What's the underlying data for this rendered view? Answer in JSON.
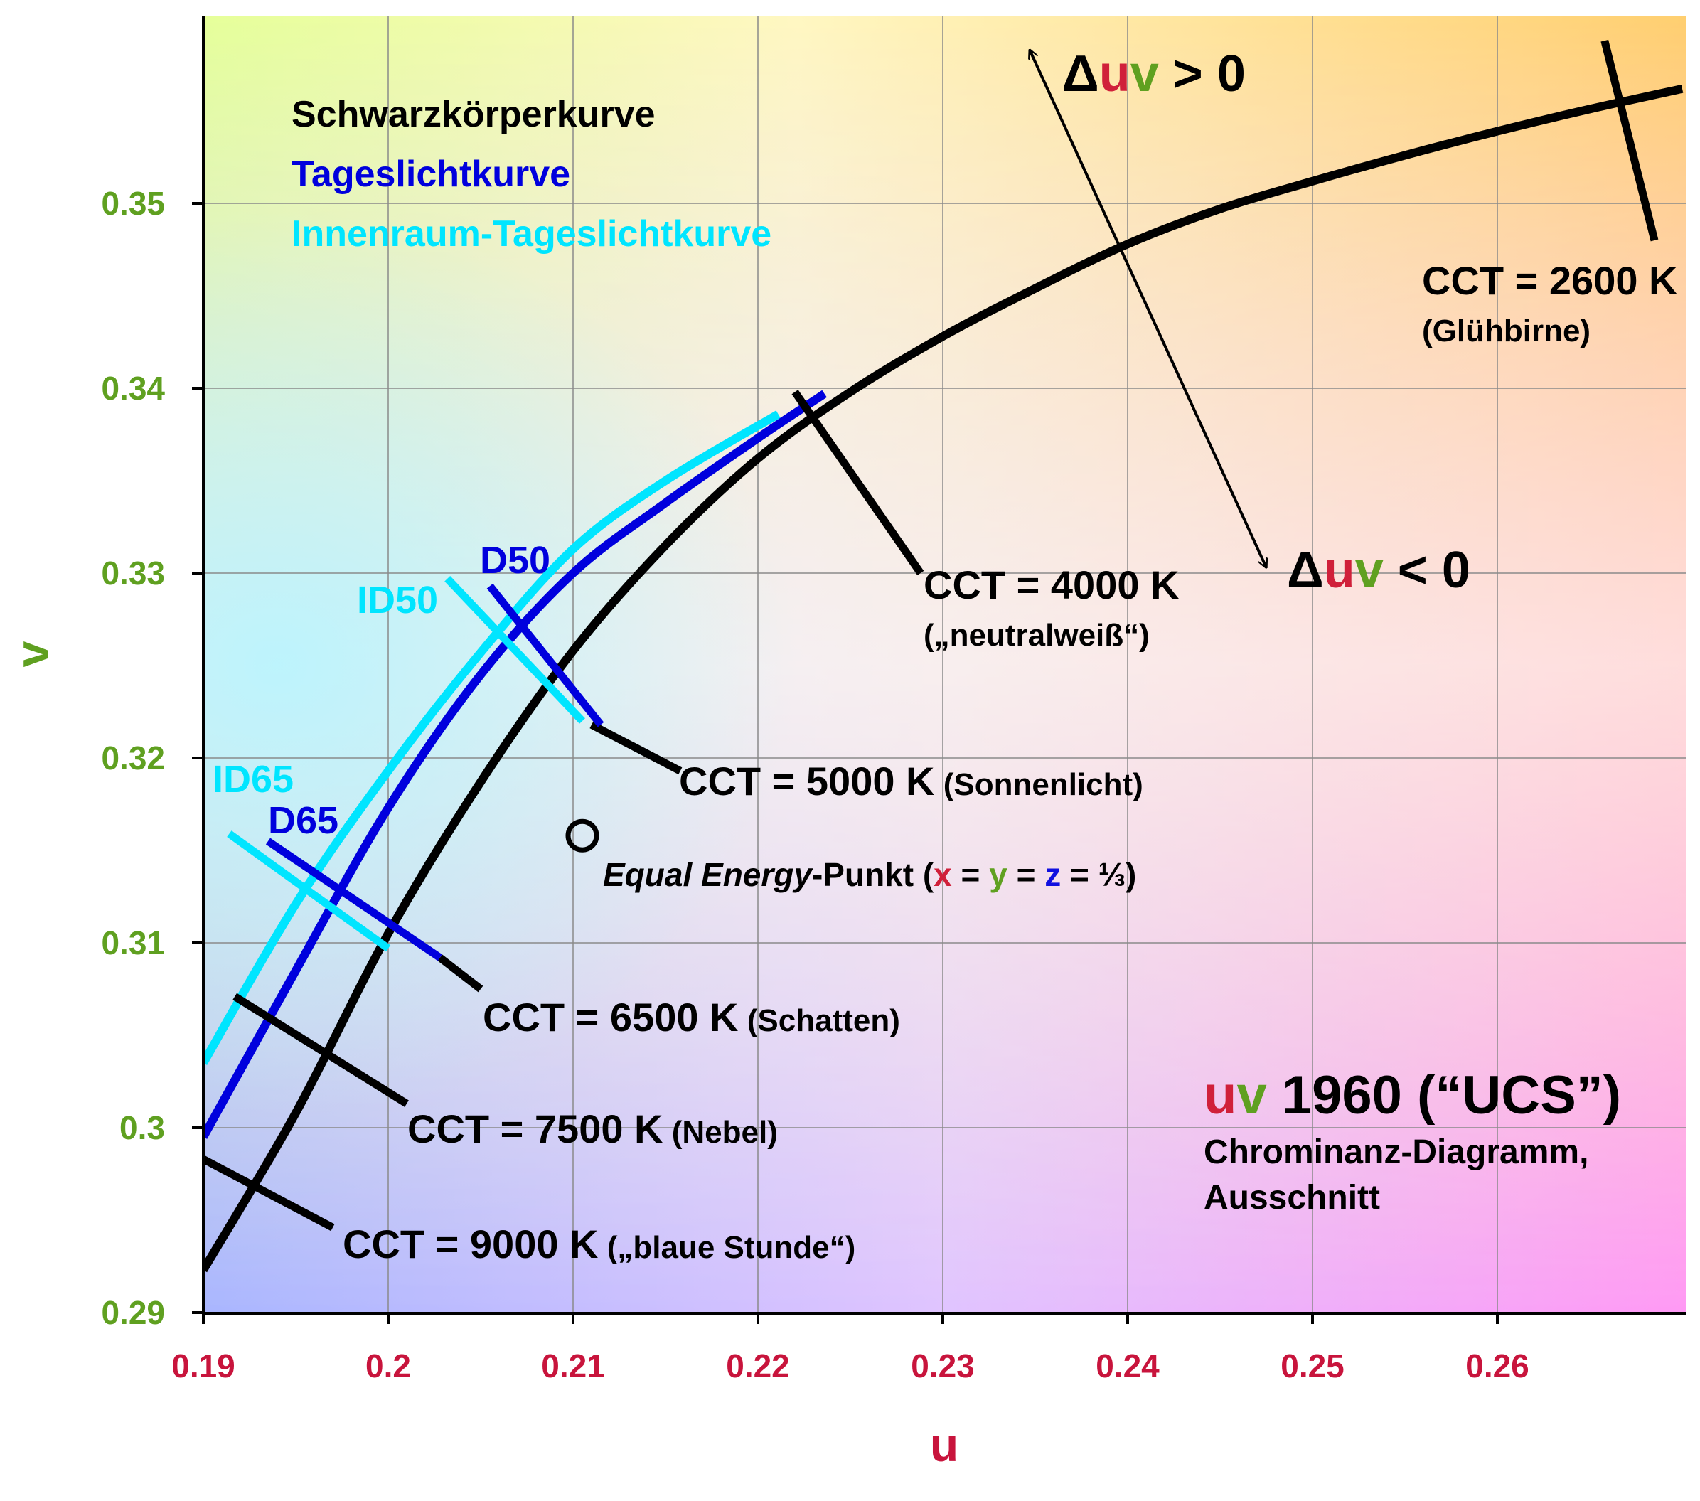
{
  "chart_data": {
    "type": "line",
    "xlabel": "u",
    "ylabel": "v",
    "xlim": [
      0.19,
      0.27
    ],
    "ylim": [
      0.29,
      0.3603
    ],
    "xticks": [
      {
        "value": 0.19,
        "label": "0.19"
      },
      {
        "value": 0.2,
        "label": "0.2"
      },
      {
        "value": 0.21,
        "label": "0.21"
      },
      {
        "value": 0.22,
        "label": "0.22"
      },
      {
        "value": 0.23,
        "label": "0.23"
      },
      {
        "value": 0.24,
        "label": "0.24"
      },
      {
        "value": 0.25,
        "label": "0.25"
      },
      {
        "value": 0.26,
        "label": "0.26"
      }
    ],
    "yticks": [
      {
        "value": 0.29,
        "label": "0.29"
      },
      {
        "value": 0.3,
        "label": "0.3"
      },
      {
        "value": 0.31,
        "label": "0.31"
      },
      {
        "value": 0.32,
        "label": "0.32"
      },
      {
        "value": 0.33,
        "label": "0.33"
      },
      {
        "value": 0.34,
        "label": "0.34"
      },
      {
        "value": 0.35,
        "label": "0.35"
      }
    ],
    "grid": true,
    "legend": [
      {
        "label": "Schwarzkörperkurve",
        "color": "#000000"
      },
      {
        "label": "Tageslichtkurve",
        "color": "#0000dd"
      },
      {
        "label": "Innenraum-Tageslichtkurve",
        "color": "#00e5ff"
      }
    ],
    "series": [
      {
        "name": "Schwarzkörperkurve",
        "color": "#000000",
        "points": [
          [
            0.19,
            0.2923
          ],
          [
            0.195,
            0.3008
          ],
          [
            0.2,
            0.3105
          ],
          [
            0.205,
            0.3187
          ],
          [
            0.21,
            0.3258
          ],
          [
            0.215,
            0.3315
          ],
          [
            0.22,
            0.3362
          ],
          [
            0.225,
            0.3398
          ],
          [
            0.23,
            0.3428
          ],
          [
            0.235,
            0.3454
          ],
          [
            0.24,
            0.3478
          ],
          [
            0.245,
            0.3497
          ],
          [
            0.25,
            0.3512
          ],
          [
            0.255,
            0.3526
          ],
          [
            0.26,
            0.3539
          ],
          [
            0.265,
            0.3551
          ],
          [
            0.27,
            0.3562
          ]
        ]
      },
      {
        "name": "Tageslichtkurve",
        "color": "#0000dd",
        "points": [
          [
            0.19,
            0.2995
          ],
          [
            0.195,
            0.3085
          ],
          [
            0.2,
            0.3173
          ],
          [
            0.205,
            0.3245
          ],
          [
            0.21,
            0.33
          ],
          [
            0.215,
            0.3338
          ],
          [
            0.22,
            0.3373
          ],
          [
            0.2236,
            0.3397
          ]
        ]
      },
      {
        "name": "Innenraum-Tageslichtkurve",
        "color": "#00e5ff",
        "points": [
          [
            0.19,
            0.3035
          ],
          [
            0.195,
            0.3121
          ],
          [
            0.2,
            0.3193
          ],
          [
            0.205,
            0.3257
          ],
          [
            0.21,
            0.3313
          ],
          [
            0.215,
            0.335
          ],
          [
            0.2211,
            0.3386
          ]
        ]
      }
    ],
    "isotherms": [
      {
        "label": "CCT = 2600 K",
        "sublabel": "(Glühbirne)",
        "color": "#000000",
        "from": [
          0.2658,
          0.3588
        ],
        "to": [
          0.2685,
          0.348
        ]
      },
      {
        "label": "CCT = 4000 K",
        "sublabel": "(„neutralweiß“)",
        "color": "#000000",
        "from": [
          0.222,
          0.3398
        ],
        "to": [
          0.2288,
          0.33
        ]
      },
      {
        "label": "CCT = 5000 K",
        "sublabel": "(Sonnenlicht)",
        "color": "#000000",
        "from": [
          0.211,
          0.3218
        ],
        "to": [
          0.2158,
          0.3193
        ]
      },
      {
        "label": "D50",
        "color": "#0000dd",
        "from": [
          0.2055,
          0.3293
        ],
        "to": [
          0.2115,
          0.3218
        ]
      },
      {
        "label": "ID50",
        "color": "#00e5ff",
        "from": [
          0.2032,
          0.3297
        ],
        "to": [
          0.2105,
          0.322
        ]
      },
      {
        "label": "CCT = 6500 K",
        "sublabel": "(Schatten)",
        "color": "#000000",
        "from": [
          0.2028,
          0.3092
        ],
        "to": [
          0.205,
          0.3075
        ]
      },
      {
        "label": "D65",
        "color": "#0000dd",
        "from": [
          0.1935,
          0.3155
        ],
        "to": [
          0.2028,
          0.3092
        ]
      },
      {
        "label": "ID65",
        "color": "#00e5ff",
        "from": [
          0.1914,
          0.3159
        ],
        "to": [
          0.2,
          0.3097
        ]
      },
      {
        "label": "CCT = 7500 K",
        "sublabel": "(Nebel)",
        "color": "#000000",
        "from": [
          0.1917,
          0.3071
        ],
        "to": [
          0.201,
          0.3013
        ]
      },
      {
        "label": "CCT = 9000 K",
        "sublabel": "(„blaue Stunde“)",
        "color": "#000000",
        "from": [
          0.19,
          0.2983
        ],
        "to": [
          0.197,
          0.2946
        ]
      }
    ],
    "equal_energy_point": {
      "u": 0.2105,
      "v": 0.3158
    },
    "delta_uv_arrow": {
      "from": [
        0.2347,
        0.3583
      ],
      "to": [
        0.2475,
        0.3303
      ]
    }
  },
  "annotations": {
    "legend_black": "Schwarzkörperkurve",
    "legend_blue": "Tageslichtkurve",
    "legend_cyan": "Innenraum-Tageslichtkurve",
    "duv_pos": {
      "delta": "Δ",
      "u": "u",
      "v": "v",
      "rest": " > 0"
    },
    "duv_neg": {
      "delta": "Δ",
      "u": "u",
      "v": "v",
      "rest": " < 0"
    },
    "cct2600": {
      "main": "CCT = 2600 K",
      "sub": "(Glühbirne)"
    },
    "cct4000": {
      "main": "CCT = 4000 K",
      "sub": "(„neutralweiß“)"
    },
    "cct5000": {
      "main": "CCT = 5000 K",
      "sub": " (Sonnenlicht)"
    },
    "cct6500": {
      "main": "CCT = 6500 K",
      "sub": " (Schatten)"
    },
    "cct7500": {
      "main": "CCT = 7500 K",
      "sub": " (Nebel)"
    },
    "cct9000": {
      "main": "CCT = 9000 K",
      "sub": " („blaue Stunde“)"
    },
    "d50": "D50",
    "id50": "ID50",
    "d65": "D65",
    "id65": "ID65",
    "equal_energy": {
      "italic": "Equal Energy",
      "punkt": "-Punkt (",
      "x": "x",
      "eq1": " = ",
      "y": "y",
      "eq2": " = ",
      "z": "z",
      "tail": " = ⅓)"
    },
    "title": {
      "u": "u",
      "v": "v",
      "main": " 1960 (“UCS”)"
    },
    "subtitle1": "Chrominanz-Diagramm,",
    "subtitle2": "Ausschnitt"
  },
  "colors": {
    "axis_label_x": "#c8143c",
    "axis_label_y": "#5fa020",
    "blackbody": "#000000",
    "daylight": "#0000dd",
    "indoor_daylight": "#00e5ff",
    "u_letter": "#d0203a",
    "v_letter": "#5fa020",
    "z_letter": "#1010e0"
  }
}
